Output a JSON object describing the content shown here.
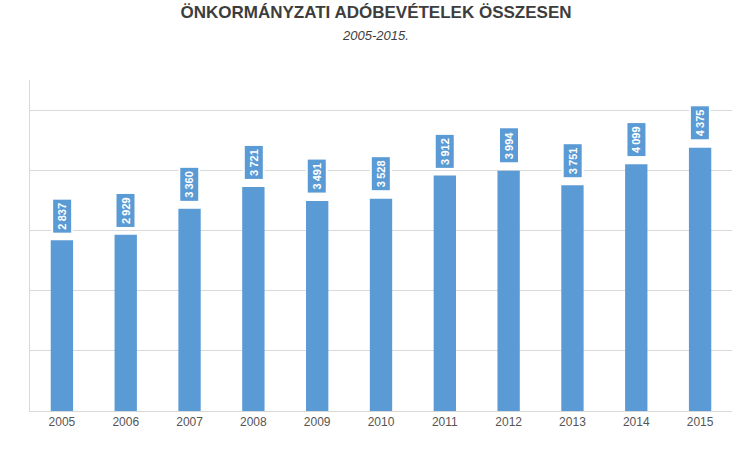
{
  "chart_data": {
    "type": "bar",
    "title": "ÖNKORMÁNYZATI ADÓBEVÉTELEK ÖSSZESEN",
    "subtitle": "2005-2015.",
    "categories": [
      "2005",
      "2006",
      "2007",
      "2008",
      "2009",
      "2010",
      "2011",
      "2012",
      "2013",
      "2014",
      "2015"
    ],
    "values": [
      2837,
      2929,
      3360,
      3721,
      3491,
      3528,
      3912,
      3994,
      3751,
      4099,
      4375
    ],
    "value_labels": [
      "2 837",
      "2 929",
      "3 360",
      "3 721",
      "3 491",
      "3 528",
      "3 912",
      "3 994",
      "3 751",
      "4 099",
      "4 375"
    ],
    "color": "#5b9bd5",
    "ylim": [
      0,
      5500
    ],
    "yticks": [
      0,
      1000,
      2000,
      3000,
      4000,
      5000
    ],
    "grid": true,
    "data_labels": true,
    "tick_labels": "x"
  }
}
